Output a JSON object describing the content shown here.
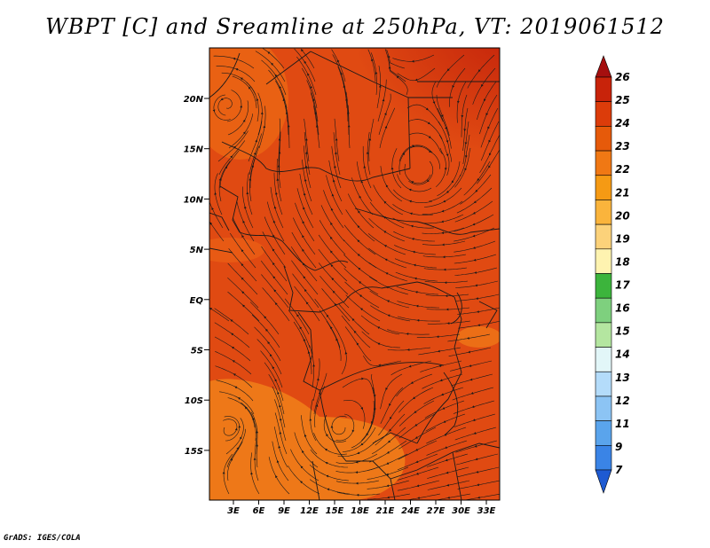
{
  "title": "WBPT [C] and Sreamline at 250hPa, VT: 2019061512",
  "credit": "GrADS: IGES/COLA",
  "map": {
    "lat_ticks": [
      "20N",
      "15N",
      "10N",
      "5N",
      "EQ",
      "5S",
      "10S",
      "15S"
    ],
    "lon_ticks": [
      "3E",
      "6E",
      "9E",
      "12E",
      "15E",
      "18E",
      "21E",
      "24E",
      "27E",
      "30E",
      "33E"
    ]
  },
  "colorbar": {
    "labels": [
      "26",
      "25",
      "24",
      "23",
      "22",
      "21",
      "20",
      "19",
      "18",
      "17",
      "16",
      "15",
      "14",
      "13",
      "12",
      "11",
      "9",
      "7"
    ],
    "colors": [
      "#a50f0f",
      "#c8230a",
      "#dc3c0a",
      "#e65a0a",
      "#f07814",
      "#f59a14",
      "#fab43c",
      "#fcd27a",
      "#fef3b0",
      "#3cb43c",
      "#7ed07e",
      "#b4e6a0",
      "#e2f6f8",
      "#b4dcfa",
      "#8cc4f4",
      "#5aa4ec",
      "#3a84e6",
      "#1e5ad2"
    ]
  }
}
